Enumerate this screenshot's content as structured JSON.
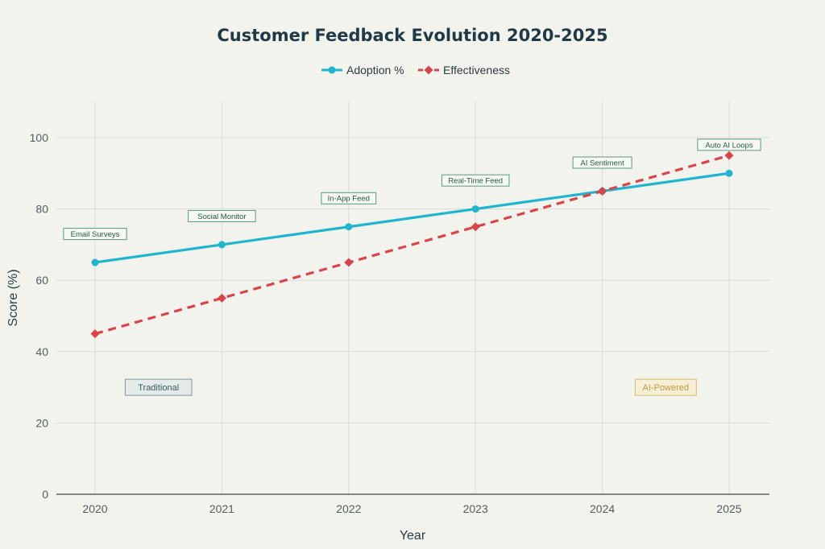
{
  "chart_data": {
    "type": "line",
    "title": "Customer Feedback Evolution 2020-2025",
    "xlabel": "Year",
    "ylabel": "Score (%)",
    "x": [
      "2020",
      "2021",
      "2022",
      "2023",
      "2024",
      "2025"
    ],
    "ylim": [
      0,
      110
    ],
    "yticks": [
      0,
      20,
      40,
      60,
      80,
      100
    ],
    "grid": true,
    "legend_position": "top-center",
    "series": [
      {
        "name": "Adoption %",
        "values": [
          65,
          70,
          75,
          80,
          85,
          90
        ],
        "color": "#1fb5cf",
        "line_style": "solid",
        "marker": "circle"
      },
      {
        "name": "Effectiveness",
        "values": [
          45,
          55,
          65,
          75,
          85,
          95
        ],
        "color": "#d9434a",
        "line_style": "dashed",
        "marker": "diamond"
      }
    ],
    "annotations": [
      {
        "text": "Email Surveys",
        "x": "2020",
        "y": 73
      },
      {
        "text": "Social Monitor",
        "x": "2021",
        "y": 78
      },
      {
        "text": "In-App Feed",
        "x": "2022",
        "y": 83
      },
      {
        "text": "Real-Time Feed",
        "x": "2023",
        "y": 88
      },
      {
        "text": "AI Sentiment",
        "x": "2024",
        "y": 93
      },
      {
        "text": "Auto AI Loops",
        "x": "2025",
        "y": 98
      }
    ],
    "eras": [
      {
        "text": "Traditional",
        "x": 2020.5,
        "y": 30,
        "style": "traditional"
      },
      {
        "text": "AI-Powered",
        "x": 2024.5,
        "y": 30,
        "style": "ai"
      }
    ]
  }
}
